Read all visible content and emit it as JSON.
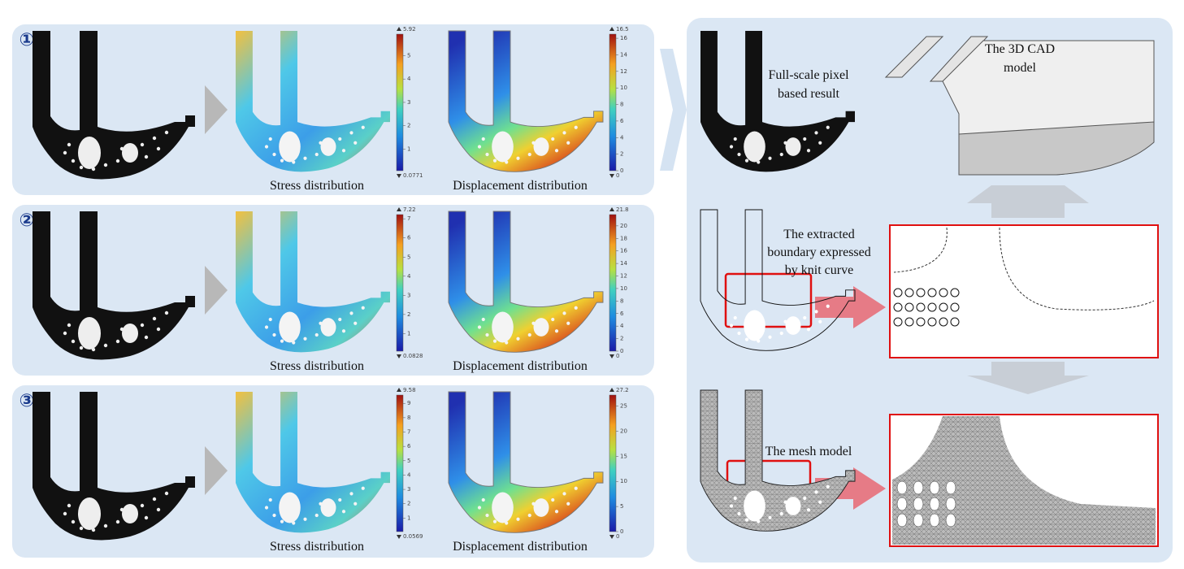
{
  "rows": [
    {
      "label": "①",
      "stress": {
        "caption": "Stress distribution",
        "max": 5.92,
        "min": 0.0771,
        "ticks": [
          1,
          2,
          3,
          4,
          5
        ]
      },
      "displacement": {
        "caption": "Displacement distribution",
        "max": 16.5,
        "min": 0,
        "ticks": [
          0,
          2,
          4,
          6,
          8,
          10,
          12,
          14,
          16
        ]
      }
    },
    {
      "label": "②",
      "stress": {
        "caption": "Stress distribution",
        "max": 7.22,
        "min": 0.0828,
        "ticks": [
          1,
          2,
          3,
          4,
          5,
          6,
          7
        ]
      },
      "displacement": {
        "caption": "Displacement distribution",
        "max": 21.8,
        "min": 0,
        "ticks": [
          0,
          2,
          4,
          6,
          8,
          10,
          12,
          14,
          16,
          18,
          20
        ]
      }
    },
    {
      "label": "③",
      "stress": {
        "caption": "Stress distribution",
        "max": 9.58,
        "min": 0.0569,
        "ticks": [
          1,
          2,
          3,
          4,
          5,
          6,
          7,
          8,
          9
        ]
      },
      "displacement": {
        "caption": "Displacement distribution",
        "max": 27.2,
        "min": 0,
        "ticks": [
          0,
          5,
          10,
          15,
          20,
          25
        ]
      }
    }
  ],
  "right_panel": {
    "pixel_result": [
      "Full-scale pixel",
      "based result"
    ],
    "cad_model": [
      "The 3D CAD",
      "model"
    ],
    "boundary": [
      "The extracted",
      "boundary expressed",
      "by knit curve"
    ],
    "mesh_model": "The mesh model"
  }
}
